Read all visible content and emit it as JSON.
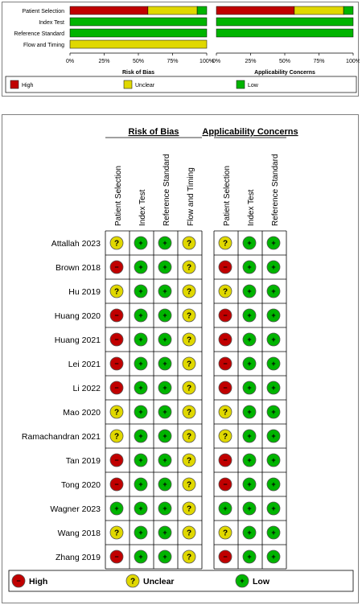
{
  "chart_data": [
    {
      "type": "bar",
      "stacked": true,
      "orientation": "horizontal",
      "unit": "%",
      "domains": [
        "Patient Selection",
        "Index Test",
        "Reference Standard",
        "Flow and Timing"
      ],
      "panels": [
        {
          "title": "Risk of Bias",
          "series": [
            {
              "name": "High",
              "values": [
                57,
                0,
                0,
                0
              ]
            },
            {
              "name": "Unclear",
              "values": [
                36,
                0,
                0,
                100
              ]
            },
            {
              "name": "Low",
              "values": [
                7,
                100,
                100,
                0
              ]
            }
          ]
        },
        {
          "title": "Applicability Concerns",
          "series": [
            {
              "name": "High",
              "values": [
                57,
                0,
                0
              ]
            },
            {
              "name": "Unclear",
              "values": [
                36,
                0,
                0
              ]
            },
            {
              "name": "Low",
              "values": [
                7,
                100,
                100
              ]
            }
          ]
        }
      ],
      "xticks": [
        "0%",
        "25%",
        "50%",
        "75%",
        "100%"
      ],
      "xlim": [
        0,
        100
      ],
      "legend": [
        {
          "key": "high",
          "label": "High",
          "color": "#c00000"
        },
        {
          "key": "unclear",
          "label": "Unclear",
          "color": "#e0d800"
        },
        {
          "key": "low",
          "label": "Low",
          "color": "#00b400"
        }
      ]
    },
    {
      "type": "table",
      "risk_title": "Risk of Bias",
      "app_title": "Applicability Concerns",
      "risk_columns": [
        "Patient Selection",
        "Index Test",
        "Reference Standard",
        "Flow and Timing"
      ],
      "app_columns": [
        "Patient Selection",
        "Index Test",
        "Reference Standard"
      ],
      "symbols": {
        "high": "−",
        "unclear": "?",
        "low": "+"
      },
      "rows": [
        {
          "study": "Attallah 2023",
          "risk": [
            "unclear",
            "low",
            "low",
            "unclear"
          ],
          "app": [
            "unclear",
            "low",
            "low"
          ]
        },
        {
          "study": "Brown 2018",
          "risk": [
            "high",
            "low",
            "low",
            "unclear"
          ],
          "app": [
            "high",
            "low",
            "low"
          ]
        },
        {
          "study": "Hu 2019",
          "risk": [
            "unclear",
            "low",
            "low",
            "unclear"
          ],
          "app": [
            "unclear",
            "low",
            "low"
          ]
        },
        {
          "study": "Huang 2020",
          "risk": [
            "high",
            "low",
            "low",
            "unclear"
          ],
          "app": [
            "high",
            "low",
            "low"
          ]
        },
        {
          "study": "Huang 2021",
          "risk": [
            "high",
            "low",
            "low",
            "unclear"
          ],
          "app": [
            "high",
            "low",
            "low"
          ]
        },
        {
          "study": "Lei 2021",
          "risk": [
            "high",
            "low",
            "low",
            "unclear"
          ],
          "app": [
            "high",
            "low",
            "low"
          ]
        },
        {
          "study": "Li 2022",
          "risk": [
            "high",
            "low",
            "low",
            "unclear"
          ],
          "app": [
            "high",
            "low",
            "low"
          ]
        },
        {
          "study": "Mao 2020",
          "risk": [
            "unclear",
            "low",
            "low",
            "unclear"
          ],
          "app": [
            "unclear",
            "low",
            "low"
          ]
        },
        {
          "study": "Ramachandran 2021",
          "risk": [
            "unclear",
            "low",
            "low",
            "unclear"
          ],
          "app": [
            "unclear",
            "low",
            "low"
          ]
        },
        {
          "study": "Tan 2019",
          "risk": [
            "high",
            "low",
            "low",
            "unclear"
          ],
          "app": [
            "high",
            "low",
            "low"
          ]
        },
        {
          "study": "Tong 2020",
          "risk": [
            "high",
            "low",
            "low",
            "unclear"
          ],
          "app": [
            "high",
            "low",
            "low"
          ]
        },
        {
          "study": "Wagner 2023",
          "risk": [
            "low",
            "low",
            "low",
            "unclear"
          ],
          "app": [
            "low",
            "low",
            "low"
          ]
        },
        {
          "study": "Wang 2018",
          "risk": [
            "unclear",
            "low",
            "low",
            "unclear"
          ],
          "app": [
            "unclear",
            "low",
            "low"
          ]
        },
        {
          "study": "Zhang 2019",
          "risk": [
            "high",
            "low",
            "low",
            "unclear"
          ],
          "app": [
            "high",
            "low",
            "low"
          ]
        }
      ],
      "legend": [
        {
          "key": "high",
          "label": "High"
        },
        {
          "key": "unclear",
          "label": "Unclear"
        },
        {
          "key": "low",
          "label": "Low"
        }
      ]
    }
  ]
}
